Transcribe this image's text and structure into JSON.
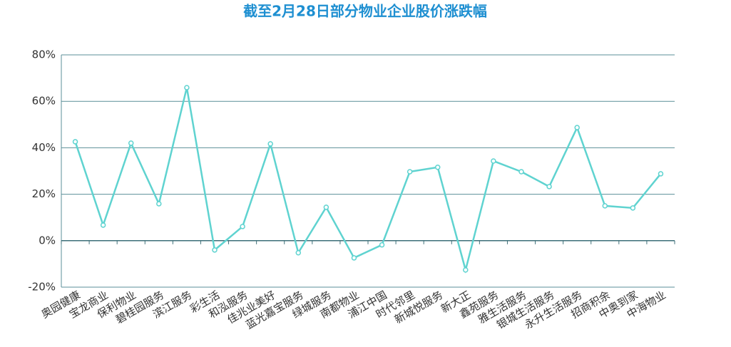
{
  "chart_data": {
    "type": "line",
    "title": "截至2月28日部分物业企业股价涨跌幅",
    "categories": [
      "奥园健康",
      "宝龙商业",
      "保利物业",
      "碧桂园服务",
      "滨江服务",
      "彩生活",
      "和泓服务",
      "佳兆业美好",
      "蓝光嘉宝服务",
      "绿城服务",
      "南都物业",
      "浦江中国",
      "时代邻里",
      "新城悦服务",
      "新大正",
      "鑫苑服务",
      "雅生活服务",
      "银城生活服务",
      "永升生活服务",
      "招商积余",
      "中奥到家",
      "中海物业"
    ],
    "series": [
      {
        "name": "涨跌幅",
        "color": "#5fd3d0",
        "values": [
          42.6,
          6.7,
          42,
          15.9,
          65.9,
          -4,
          6.1,
          41.7,
          -5.2,
          14.4,
          -7.4,
          -1.8,
          29.7,
          31.6,
          -12.6,
          34.3,
          29.7,
          23.3,
          48.7,
          15,
          14.1,
          28.8
        ]
      }
    ],
    "ylim": [
      -20,
      80
    ],
    "yticks": [
      {
        "value": -20,
        "label": "-20%"
      },
      {
        "value": 0,
        "label": "0%"
      },
      {
        "value": 20,
        "label": "20%"
      },
      {
        "value": 40,
        "label": "40%"
      },
      {
        "value": 60,
        "label": "60%"
      },
      {
        "value": 80,
        "label": "80%"
      }
    ],
    "grid": true
  }
}
